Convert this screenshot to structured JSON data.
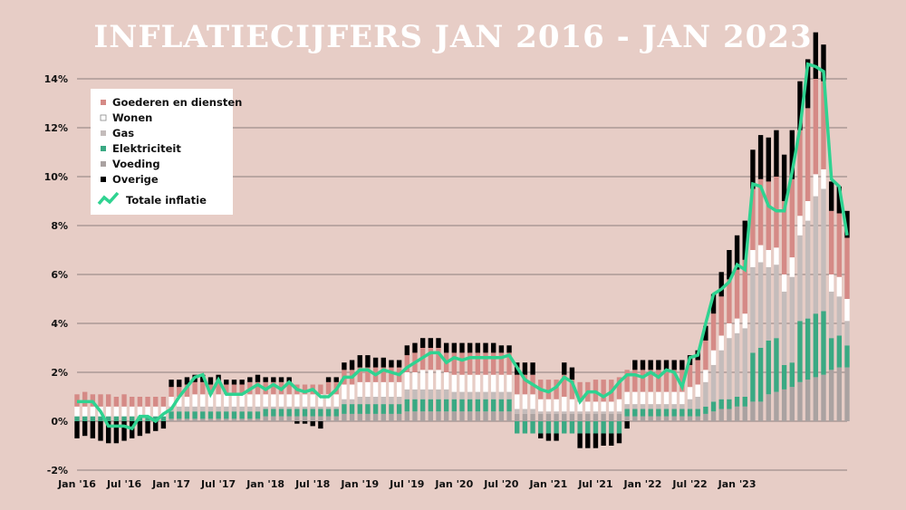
{
  "chart_data": {
    "type": "bar",
    "title": "INFLATIECIJFERS JAN 2016 - JAN 2023",
    "stacked": true,
    "ylim": [
      -2,
      14.6
    ],
    "yticks": [
      -2,
      0,
      2,
      4,
      6,
      8,
      10,
      12,
      14
    ],
    "ytick_labels": [
      "-2%",
      "0%",
      "2%",
      "4%",
      "6%",
      "8%",
      "10%",
      "12%",
      "14%"
    ],
    "xtick_labels": [
      "Jan '16",
      "Jul '16",
      "Jan '17",
      "Jul '17",
      "Jan '18",
      "Jul '18",
      "Jan '19",
      "Jul '19",
      "Jan '20",
      "Jul '20",
      "Jan '21",
      "Jul '21",
      "Jan '22",
      "Jul '22",
      "Jan '23"
    ],
    "grid": true,
    "legend_position": "top-left",
    "colors": {
      "goederen": "#d58a86",
      "wonen": "#ffffff",
      "gas": "#c4bcbb",
      "elektriciteit": "#3aa983",
      "voeding": "#aaa2a1",
      "overige": "#000000",
      "totaal": "#2fd391",
      "grid": "#6e6464"
    },
    "series": [
      {
        "key": "voeding",
        "name": "Voeding",
        "color": "#aaa2a1"
      },
      {
        "key": "elektriciteit",
        "name": "Elektriciteit",
        "color": "#3aa983"
      },
      {
        "key": "gas",
        "name": "Gas",
        "color": "#c4bcbb"
      },
      {
        "key": "wonen",
        "name": "Wonen",
        "color": "#ffffff"
      },
      {
        "key": "goederen",
        "name": "Goederen en diensten",
        "color": "#d58a86"
      },
      {
        "key": "overige",
        "name": "Overige",
        "color": "#000000"
      }
    ],
    "line_series": {
      "name": "Totale inflatie",
      "color": "#2fd391"
    },
    "legend": [
      "Goederen en diensten",
      "Wonen",
      "Gas",
      "Elektriciteit",
      "Voeding",
      "Overige",
      "Totale inflatie"
    ],
    "total": [
      0.8,
      0.8,
      0.8,
      0.4,
      -0.2,
      -0.2,
      -0.2,
      -0.3,
      0.2,
      0.2,
      0.0,
      0.3,
      0.5,
      1.0,
      1.4,
      1.8,
      1.9,
      1.1,
      1.7,
      1.1,
      1.1,
      1.1,
      1.3,
      1.5,
      1.3,
      1.5,
      1.3,
      1.6,
      1.3,
      1.2,
      1.3,
      1.0,
      1.0,
      1.3,
      1.8,
      1.8,
      2.1,
      2.1,
      1.9,
      2.1,
      2.0,
      1.9,
      2.2,
      2.4,
      2.6,
      2.8,
      2.8,
      2.4,
      2.6,
      2.5,
      2.6,
      2.6,
      2.6,
      2.6,
      2.6,
      2.7,
      2.2,
      1.7,
      1.5,
      1.3,
      1.2,
      1.4,
      1.8,
      1.6,
      0.8,
      1.2,
      1.2,
      1.0,
      1.2,
      1.6,
      1.9,
      1.9,
      1.8,
      2.0,
      1.8,
      2.1,
      2.0,
      1.4,
      2.6,
      2.7,
      4.0,
      5.2,
      5.4,
      5.7,
      6.4,
      6.2,
      9.7,
      9.6,
      8.8,
      8.6,
      8.6,
      10.2,
      12.0,
      14.6,
      14.5,
      14.3,
      9.9,
      9.6,
      7.6
    ],
    "goederen": [
      0.5,
      0.6,
      0.5,
      0.5,
      0.5,
      0.4,
      0.5,
      0.4,
      0.4,
      0.4,
      0.4,
      0.4,
      0.4,
      0.4,
      0.5,
      0.5,
      0.5,
      0.4,
      0.5,
      0.4,
      0.4,
      0.4,
      0.5,
      0.5,
      0.5,
      0.5,
      0.5,
      0.5,
      0.4,
      0.4,
      0.4,
      0.4,
      0.5,
      0.5,
      0.6,
      0.6,
      0.6,
      0.6,
      0.6,
      0.6,
      0.6,
      0.6,
      0.7,
      0.8,
      0.9,
      0.9,
      0.9,
      0.8,
      0.9,
      0.9,
      0.9,
      0.9,
      0.9,
      0.9,
      0.9,
      0.9,
      0.8,
      0.8,
      0.8,
      0.8,
      0.8,
      0.8,
      0.9,
      0.8,
      0.8,
      0.8,
      0.9,
      0.9,
      0.9,
      0.9,
      0.9,
      0.9,
      0.9,
      0.9,
      0.9,
      0.9,
      0.9,
      0.9,
      0.9,
      1.0,
      1.2,
      1.5,
      1.6,
      1.8,
      2.0,
      2.2,
      2.5,
      2.7,
      2.8,
      2.9,
      3.0,
      3.2,
      3.5,
      3.8,
      3.9,
      3.6,
      2.6,
      2.6,
      2.5
    ],
    "wonen": [
      0.4,
      0.4,
      0.4,
      0.4,
      0.4,
      0.4,
      0.4,
      0.4,
      0.4,
      0.4,
      0.4,
      0.4,
      0.4,
      0.4,
      0.4,
      0.5,
      0.5,
      0.5,
      0.5,
      0.5,
      0.5,
      0.5,
      0.5,
      0.5,
      0.5,
      0.5,
      0.5,
      0.5,
      0.5,
      0.5,
      0.5,
      0.5,
      0.5,
      0.5,
      0.6,
      0.6,
      0.6,
      0.6,
      0.6,
      0.6,
      0.6,
      0.6,
      0.7,
      0.7,
      0.8,
      0.8,
      0.8,
      0.7,
      0.7,
      0.7,
      0.7,
      0.7,
      0.7,
      0.7,
      0.7,
      0.7,
      0.6,
      0.6,
      0.6,
      0.5,
      0.5,
      0.5,
      0.6,
      0.5,
      0.4,
      0.4,
      0.4,
      0.4,
      0.4,
      0.5,
      0.5,
      0.5,
      0.5,
      0.5,
      0.5,
      0.5,
      0.5,
      0.5,
      0.5,
      0.5,
      0.5,
      0.6,
      0.6,
      0.6,
      0.6,
      0.6,
      0.7,
      0.7,
      0.7,
      0.7,
      0.7,
      0.8,
      0.8,
      0.8,
      0.9,
      0.8,
      0.7,
      0.8,
      0.9
    ],
    "gas": [
      0.0,
      0.0,
      0.0,
      0.0,
      0.0,
      0.0,
      0.0,
      0.0,
      0.0,
      0.0,
      0.0,
      0.0,
      0.2,
      0.2,
      0.2,
      0.2,
      0.2,
      0.2,
      0.2,
      0.2,
      0.2,
      0.2,
      0.2,
      0.2,
      0.1,
      0.1,
      0.1,
      0.1,
      0.1,
      0.1,
      0.1,
      0.1,
      0.1,
      0.1,
      0.2,
      0.2,
      0.3,
      0.3,
      0.3,
      0.3,
      0.3,
      0.3,
      0.4,
      0.4,
      0.4,
      0.4,
      0.4,
      0.4,
      0.3,
      0.3,
      0.3,
      0.3,
      0.3,
      0.3,
      0.3,
      0.3,
      0.2,
      0.2,
      0.2,
      0.1,
      0.1,
      0.1,
      0.1,
      0.1,
      0.1,
      0.1,
      0.1,
      0.1,
      0.1,
      0.1,
      0.2,
      0.2,
      0.2,
      0.2,
      0.2,
      0.2,
      0.2,
      0.2,
      0.4,
      0.5,
      1.0,
      1.5,
      2.0,
      2.5,
      2.6,
      2.8,
      3.5,
      3.5,
      3.0,
      3.0,
      3.0,
      3.5,
      3.5,
      4.0,
      4.8,
      5.0,
      1.9,
      1.6,
      1.0
    ],
    "elektriciteit": [
      0.2,
      0.2,
      0.2,
      0.2,
      0.2,
      0.2,
      0.2,
      0.2,
      0.2,
      0.2,
      0.2,
      0.2,
      0.3,
      0.3,
      0.3,
      0.3,
      0.3,
      0.3,
      0.3,
      0.3,
      0.3,
      0.3,
      0.3,
      0.3,
      0.3,
      0.3,
      0.3,
      0.3,
      0.3,
      0.3,
      0.3,
      0.3,
      0.3,
      0.3,
      0.4,
      0.4,
      0.4,
      0.4,
      0.4,
      0.4,
      0.4,
      0.4,
      0.5,
      0.5,
      0.5,
      0.5,
      0.5,
      0.5,
      0.5,
      0.5,
      0.5,
      0.5,
      0.5,
      0.5,
      0.5,
      0.5,
      -0.5,
      -0.5,
      -0.5,
      -0.5,
      -0.5,
      -0.5,
      -0.5,
      -0.5,
      -0.5,
      -0.5,
      -0.5,
      -0.5,
      -0.5,
      -0.5,
      0.3,
      0.3,
      0.3,
      0.3,
      0.3,
      0.3,
      0.3,
      0.3,
      0.3,
      0.3,
      0.3,
      0.4,
      0.4,
      0.4,
      0.4,
      0.4,
      2.0,
      2.2,
      2.2,
      2.2,
      1.0,
      1.0,
      2.5,
      2.5,
      2.6,
      2.6,
      1.3,
      1.3,
      0.9
    ],
    "voeding": [
      0.0,
      0.0,
      0.0,
      0.0,
      0.0,
      0.0,
      0.0,
      0.0,
      0.0,
      0.0,
      0.0,
      0.0,
      0.1,
      0.1,
      0.1,
      0.1,
      0.1,
      0.1,
      0.1,
      0.1,
      0.1,
      0.1,
      0.1,
      0.1,
      0.2,
      0.2,
      0.2,
      0.2,
      0.2,
      0.2,
      0.2,
      0.2,
      0.2,
      0.2,
      0.3,
      0.3,
      0.3,
      0.3,
      0.3,
      0.3,
      0.3,
      0.3,
      0.4,
      0.4,
      0.4,
      0.4,
      0.4,
      0.4,
      0.4,
      0.4,
      0.4,
      0.4,
      0.4,
      0.4,
      0.4,
      0.4,
      0.3,
      0.3,
      0.3,
      0.3,
      0.3,
      0.3,
      0.3,
      0.3,
      0.3,
      0.3,
      0.3,
      0.3,
      0.3,
      0.3,
      0.2,
      0.2,
      0.2,
      0.2,
      0.2,
      0.2,
      0.2,
      0.2,
      0.2,
      0.2,
      0.3,
      0.4,
      0.5,
      0.5,
      0.6,
      0.6,
      0.8,
      0.8,
      1.1,
      1.2,
      1.3,
      1.4,
      1.6,
      1.7,
      1.8,
      1.9,
      2.1,
      2.2,
      2.2
    ],
    "overige": [
      -0.7,
      -0.6,
      -0.7,
      -0.8,
      -0.9,
      -0.9,
      -0.8,
      -0.7,
      -0.6,
      -0.5,
      -0.4,
      -0.3,
      0.3,
      0.3,
      0.3,
      0.3,
      0.3,
      0.3,
      0.3,
      0.2,
      0.2,
      0.2,
      0.2,
      0.3,
      0.2,
      0.2,
      0.2,
      0.2,
      -0.1,
      -0.1,
      -0.2,
      -0.3,
      0.2,
      0.2,
      0.3,
      0.4,
      0.5,
      0.5,
      0.4,
      0.4,
      0.3,
      0.3,
      0.4,
      0.4,
      0.4,
      0.4,
      0.4,
      0.4,
      0.4,
      0.4,
      0.4,
      0.4,
      0.4,
      0.4,
      0.3,
      0.3,
      0.5,
      0.5,
      0.5,
      -0.2,
      -0.3,
      -0.3,
      0.5,
      0.5,
      -0.6,
      -0.6,
      -0.6,
      -0.5,
      -0.5,
      -0.4,
      -0.3,
      0.4,
      0.4,
      0.4,
      0.4,
      0.4,
      0.4,
      0.4,
      0.4,
      0.4,
      0.6,
      0.8,
      1.0,
      1.2,
      1.4,
      1.6,
      1.6,
      1.8,
      1.8,
      1.9,
      1.9,
      2.0,
      2.0,
      2.0,
      1.9,
      1.5,
      1.2,
      1.1,
      1.1
    ]
  }
}
